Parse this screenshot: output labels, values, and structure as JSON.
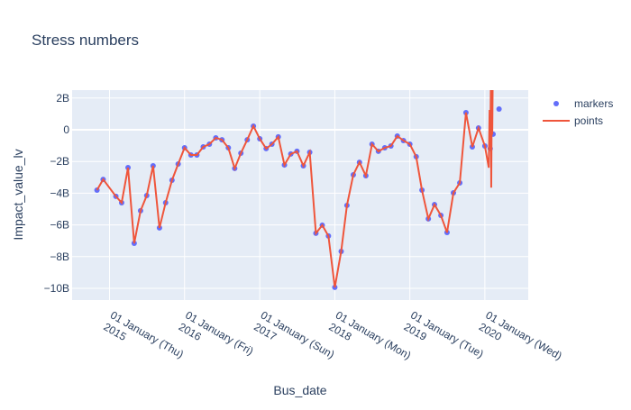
{
  "chart_data": {
    "type": "line",
    "title": "Stress numbers",
    "xlabel": "Bus_date",
    "ylabel": "Impact_value_lv",
    "xlim": [
      "2014-07-03",
      "2020-07-30"
    ],
    "xticks": [
      {
        "value": "2015-01-01",
        "label": "01 January (Thu)\n2015"
      },
      {
        "value": "2016-01-01",
        "label": "01 January (Fri)\n2016"
      },
      {
        "value": "2017-01-01",
        "label": "01 January (Sun)\n2017"
      },
      {
        "value": "2018-01-01",
        "label": "01 January (Mon)\n2018"
      },
      {
        "value": "2019-01-01",
        "label": "01 January (Tue)\n2019"
      },
      {
        "value": "2020-01-01",
        "label": "01 January (Wed)\n2020"
      }
    ],
    "ylim": [
      -10740000000.0,
      2500000000.0
    ],
    "yticks": [
      {
        "value": 2000000000.0,
        "label": "2B"
      },
      0,
      {
        "value": -2000000000.0,
        "label": "−2B"
      },
      {
        "value": -4000000000.0,
        "label": "−4B"
      },
      {
        "value": -6000000000.0,
        "label": "−6B"
      },
      {
        "value": -8000000000.0,
        "label": "−8B"
      },
      {
        "value": -10000000000.0,
        "label": "−10B"
      }
    ],
    "grid": true,
    "legend": "right",
    "series": [
      {
        "name": "markers",
        "mode": "markers",
        "color": "#636efa",
        "x": [
          "2014-11-01",
          "2014-12-01",
          "2015-02-01",
          "2015-03-01",
          "2015-04-01",
          "2015-05-01",
          "2015-06-01",
          "2015-07-01",
          "2015-08-01",
          "2015-09-01",
          "2015-10-01",
          "2015-11-01",
          "2015-12-01",
          "2016-01-01",
          "2016-02-01",
          "2016-03-01",
          "2016-04-01",
          "2016-05-01",
          "2016-06-01",
          "2016-07-01",
          "2016-08-01",
          "2016-09-01",
          "2016-10-01",
          "2016-11-01",
          "2016-12-01",
          "2017-01-01",
          "2017-02-01",
          "2017-03-01",
          "2017-04-01",
          "2017-05-01",
          "2017-06-01",
          "2017-07-01",
          "2017-08-01",
          "2017-09-01",
          "2017-10-01",
          "2017-11-01",
          "2017-12-01",
          "2018-01-01",
          "2018-02-01",
          "2018-03-01",
          "2018-04-01",
          "2018-05-01",
          "2018-06-01",
          "2018-07-01",
          "2018-08-01",
          "2018-09-01",
          "2018-10-01",
          "2018-11-01",
          "2018-12-01",
          "2019-01-01",
          "2019-02-01",
          "2019-03-01",
          "2019-04-01",
          "2019-05-01",
          "2019-06-01",
          "2019-07-01",
          "2019-08-01",
          "2019-09-01",
          "2019-10-01",
          "2019-11-01",
          "2019-12-01",
          "2020-01-01",
          "2020-01-27",
          "2020-02-10",
          "2020-03-10"
        ],
        "values": [
          -3810000000.0,
          -3130000000.0,
          -4200000000.0,
          -4600000000.0,
          -2390000000.0,
          -7160000000.0,
          -5110000000.0,
          -4150000000.0,
          -2270000000.0,
          -6190000000.0,
          -4600000000.0,
          -3180000000.0,
          -2160000000.0,
          -1140000000.0,
          -1590000000.0,
          -1590000000.0,
          -1080000000.0,
          -910000000.0,
          -510000000.0,
          -630000000.0,
          -1140000000.0,
          -2440000000.0,
          -1480000000.0,
          -630000000.0,
          230000000.0,
          -570000000.0,
          -1190000000.0,
          -910000000.0,
          -450000000.0,
          -2220000000.0,
          -1530000000.0,
          -1360000000.0,
          -2270000000.0,
          -1420000000.0,
          -6530000000.0,
          -6020000000.0,
          -6700000000.0,
          -9940000000.0,
          -7670000000.0,
          -4770000000.0,
          -2840000000.0,
          -2050000000.0,
          -2900000000.0,
          -910000000.0,
          -1360000000.0,
          -1140000000.0,
          -1020000000.0,
          -400000000.0,
          -680000000.0,
          -910000000.0,
          -1700000000.0,
          -3810000000.0,
          -5620000000.0,
          -4720000000.0,
          -5400000000.0,
          -6480000000.0,
          -3980000000.0,
          -3350000000.0,
          1080000000.0,
          -1080000000.0,
          110000000.0,
          -1020000000.0,
          -1190000000.0,
          -280000000.0,
          1310000000.0
        ]
      },
      {
        "name": "points",
        "mode": "lines",
        "color": "#ef553b",
        "x": [
          "2014-11-01",
          "2014-12-01",
          "2015-02-01",
          "2015-03-01",
          "2015-04-01",
          "2015-05-01",
          "2015-06-01",
          "2015-07-01",
          "2015-08-01",
          "2015-09-01",
          "2015-10-01",
          "2015-11-01",
          "2015-12-01",
          "2016-01-01",
          "2016-02-01",
          "2016-03-01",
          "2016-04-01",
          "2016-05-01",
          "2016-06-01",
          "2016-07-01",
          "2016-08-01",
          "2016-09-01",
          "2016-10-01",
          "2016-11-01",
          "2016-12-01",
          "2017-01-01",
          "2017-02-01",
          "2017-03-01",
          "2017-04-01",
          "2017-05-01",
          "2017-06-01",
          "2017-07-01",
          "2017-08-01",
          "2017-09-01",
          "2017-10-01",
          "2017-11-01",
          "2017-12-01",
          "2018-01-01",
          "2018-02-01",
          "2018-03-01",
          "2018-04-01",
          "2018-05-01",
          "2018-06-01",
          "2018-07-01",
          "2018-08-01",
          "2018-09-01",
          "2018-10-01",
          "2018-11-01",
          "2018-12-01",
          "2019-01-01",
          "2019-02-01",
          "2019-03-01",
          "2019-04-01",
          "2019-05-01",
          "2019-06-01",
          "2019-07-01",
          "2019-08-01",
          "2019-09-01",
          "2019-10-01",
          "2019-11-01",
          "2019-12-01",
          "2020-01-01",
          "2020-01-20",
          "2020-01-24",
          "2020-01-27",
          "2020-01-30",
          "2020-02-01",
          "2020-02-04",
          "2020-02-06",
          "2020-02-08",
          "2020-02-10"
        ],
        "values": [
          -3810000000.0,
          -3130000000.0,
          -4200000000.0,
          -4600000000.0,
          -2390000000.0,
          -7160000000.0,
          -5110000000.0,
          -4150000000.0,
          -2270000000.0,
          -6190000000.0,
          -4600000000.0,
          -3180000000.0,
          -2160000000.0,
          -1140000000.0,
          -1590000000.0,
          -1590000000.0,
          -1080000000.0,
          -910000000.0,
          -510000000.0,
          -630000000.0,
          -1140000000.0,
          -2440000000.0,
          -1480000000.0,
          -630000000.0,
          230000000.0,
          -570000000.0,
          -1190000000.0,
          -910000000.0,
          -450000000.0,
          -2220000000.0,
          -1530000000.0,
          -1360000000.0,
          -2270000000.0,
          -1420000000.0,
          -6530000000.0,
          -6020000000.0,
          -6700000000.0,
          -9940000000.0,
          -7670000000.0,
          -4770000000.0,
          -2840000000.0,
          -2050000000.0,
          -2900000000.0,
          -910000000.0,
          -1360000000.0,
          -1140000000.0,
          -1020000000.0,
          -400000000.0,
          -680000000.0,
          -910000000.0,
          -1700000000.0,
          -3810000000.0,
          -5620000000.0,
          -4720000000.0,
          -5400000000.0,
          -6480000000.0,
          -3980000000.0,
          -3350000000.0,
          1080000000.0,
          -1080000000.0,
          110000000.0,
          -1020000000.0,
          -2390000000.0,
          1250000000.0,
          -1190000000.0,
          2600000000.0,
          -3650000000.0,
          2700000000.0,
          -300000000.0,
          2800000000.0,
          2700000000.0
        ]
      }
    ]
  }
}
